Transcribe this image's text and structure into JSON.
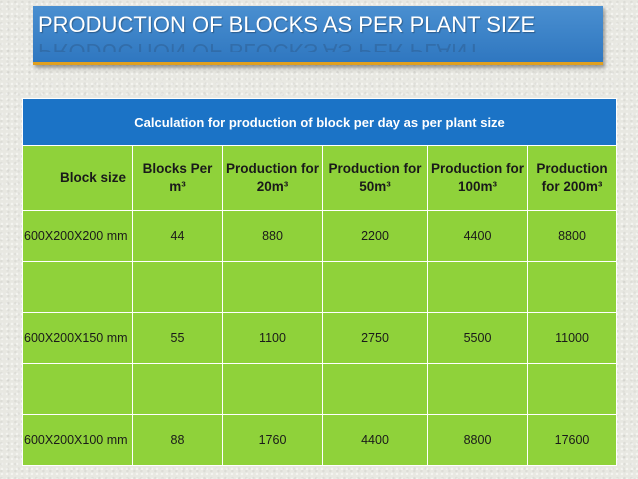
{
  "slide": {
    "title": "PRODUCTION OF BLOCKS AS PER PLANT SIZE",
    "title_reflection": "PRODUCTION OF BLOCKS AS PER PLANT"
  },
  "table": {
    "caption": "Calculation for production of block per day as per plant size",
    "headers": [
      "Block size",
      "Blocks Per m³",
      "Production for 20m³",
      "Production for 50m³",
      "Production for 100m³",
      "Production for 200m³"
    ],
    "rows": [
      {
        "size": "600X200X200 mm",
        "blocks": "44",
        "p20": "880",
        "p50": "2200",
        "p100": "4400",
        "p200": "8800"
      },
      {
        "size": "600X200X150 mm",
        "blocks": "55",
        "p20": "1100",
        "p50": "2750",
        "p100": "5500",
        "p200": "11000"
      },
      {
        "size": "600X200X100 mm",
        "blocks": "88",
        "p20": "1760",
        "p50": "4400",
        "p100": "8800",
        "p200": "17600"
      }
    ]
  },
  "colors": {
    "title_bg": "#2f77c0",
    "header_bg": "#1b73c6",
    "cell_bg": "#8fd23a",
    "accent": "#e0a020"
  }
}
